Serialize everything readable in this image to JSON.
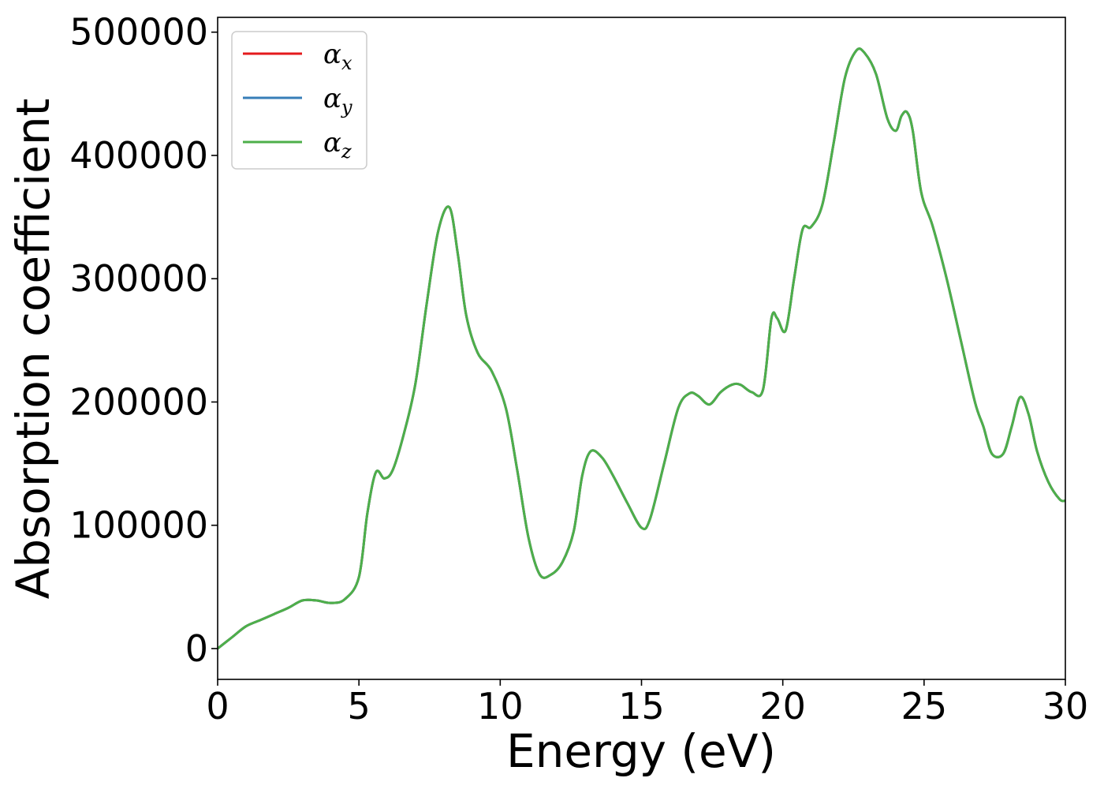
{
  "chart_data": {
    "type": "line",
    "title": "",
    "xlabel": "Energy (eV)",
    "ylabel": "Absorption coefficient",
    "xlim": [
      0,
      30
    ],
    "ylim": [
      -25000,
      512000
    ],
    "xticks": [
      0,
      5,
      10,
      15,
      20,
      25,
      30
    ],
    "xtick_labels": [
      "0",
      "5",
      "10",
      "15",
      "20",
      "25",
      "30"
    ],
    "yticks": [
      0,
      100000,
      200000,
      300000,
      400000,
      500000
    ],
    "ytick_labels": [
      "0",
      "100000",
      "200000",
      "300000",
      "400000",
      "500000"
    ],
    "grid": false,
    "legend_position": "top-left",
    "x": [
      0,
      0.5,
      1.0,
      1.5,
      2.0,
      2.5,
      3.0,
      3.5,
      4.0,
      4.5,
      5.0,
      5.3,
      5.6,
      5.9,
      6.2,
      6.6,
      7.0,
      7.4,
      7.8,
      8.2,
      8.5,
      8.8,
      9.2,
      9.7,
      10.2,
      10.6,
      11.0,
      11.4,
      11.8,
      12.2,
      12.6,
      12.9,
      13.2,
      13.6,
      14.0,
      14.5,
      15.0,
      15.3,
      15.8,
      16.3,
      16.7,
      17.0,
      17.4,
      17.8,
      18.2,
      18.5,
      18.9,
      19.3,
      19.6,
      19.8,
      20.1,
      20.4,
      20.7,
      21.0,
      21.4,
      21.8,
      22.2,
      22.6,
      22.9,
      23.3,
      23.7,
      24.0,
      24.2,
      24.4,
      24.6,
      24.9,
      25.3,
      25.8,
      26.3,
      26.8,
      27.1,
      27.4,
      27.8,
      28.1,
      28.4,
      28.7,
      29.0,
      29.4,
      29.8,
      30.0
    ],
    "series": [
      {
        "name": "α_x",
        "color": "#e41a1c",
        "values": [
          0,
          9000,
          18000,
          23000,
          28000,
          33000,
          39000,
          39000,
          37000,
          40000,
          58000,
          110000,
          143000,
          138000,
          145000,
          175000,
          215000,
          280000,
          338000,
          358000,
          320000,
          270000,
          240000,
          225000,
          195000,
          145000,
          90000,
          60000,
          60000,
          70000,
          95000,
          140000,
          160000,
          155000,
          140000,
          118000,
          98000,
          105000,
          150000,
          195000,
          207000,
          205000,
          198000,
          208000,
          214000,
          214000,
          208000,
          210000,
          268000,
          268000,
          258000,
          300000,
          340000,
          342000,
          360000,
          410000,
          463000,
          485000,
          483000,
          466000,
          430000,
          420000,
          432000,
          435000,
          420000,
          370000,
          343000,
          300000,
          250000,
          200000,
          180000,
          158000,
          158000,
          180000,
          204000,
          190000,
          160000,
          135000,
          121000,
          120000
        ]
      },
      {
        "name": "α_y",
        "color": "#377eb8",
        "values": [
          0,
          9000,
          18000,
          23000,
          28000,
          33000,
          39000,
          39000,
          37000,
          40000,
          58000,
          110000,
          143000,
          138000,
          145000,
          175000,
          215000,
          280000,
          338000,
          358000,
          320000,
          270000,
          240000,
          225000,
          195000,
          145000,
          90000,
          60000,
          60000,
          70000,
          95000,
          140000,
          160000,
          155000,
          140000,
          118000,
          98000,
          105000,
          150000,
          195000,
          207000,
          205000,
          198000,
          208000,
          214000,
          214000,
          208000,
          210000,
          268000,
          268000,
          258000,
          300000,
          340000,
          342000,
          360000,
          410000,
          463000,
          485000,
          483000,
          466000,
          430000,
          420000,
          432000,
          435000,
          420000,
          370000,
          343000,
          300000,
          250000,
          200000,
          180000,
          158000,
          158000,
          180000,
          204000,
          190000,
          160000,
          135000,
          121000,
          120000
        ]
      },
      {
        "name": "α_z",
        "color": "#4daf4a",
        "values": [
          0,
          9000,
          18000,
          23000,
          28000,
          33000,
          39000,
          39000,
          37000,
          40000,
          58000,
          110000,
          143000,
          138000,
          145000,
          175000,
          215000,
          280000,
          338000,
          358000,
          320000,
          270000,
          240000,
          225000,
          195000,
          145000,
          90000,
          60000,
          60000,
          70000,
          95000,
          140000,
          160000,
          155000,
          140000,
          118000,
          98000,
          105000,
          150000,
          195000,
          207000,
          205000,
          198000,
          208000,
          214000,
          214000,
          208000,
          210000,
          268000,
          268000,
          258000,
          300000,
          340000,
          342000,
          360000,
          410000,
          463000,
          485000,
          483000,
          466000,
          430000,
          420000,
          432000,
          435000,
          420000,
          370000,
          343000,
          300000,
          250000,
          200000,
          180000,
          158000,
          158000,
          180000,
          204000,
          190000,
          160000,
          135000,
          121000,
          120000
        ]
      }
    ],
    "legend": [
      {
        "symbol": "α",
        "sub": "x",
        "color": "#e41a1c"
      },
      {
        "symbol": "α",
        "sub": "y",
        "color": "#377eb8"
      },
      {
        "symbol": "α",
        "sub": "z",
        "color": "#4daf4a"
      }
    ]
  }
}
